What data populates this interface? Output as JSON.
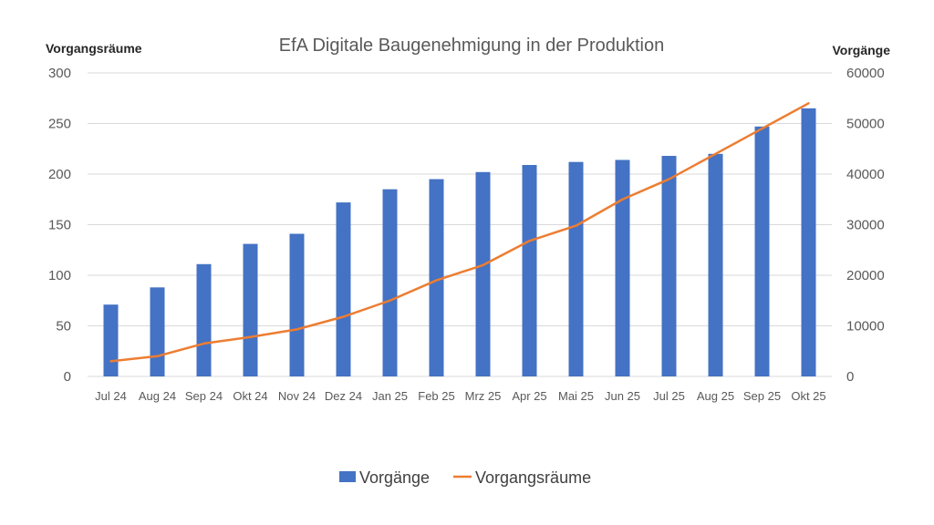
{
  "chart_data": {
    "type": "bar",
    "title": "EfA Digitale Baugenehmigung in der Produktion",
    "categories": [
      "Jul 24",
      "Aug 24",
      "Sep 24",
      "Okt 24",
      "Nov 24",
      "Dez 24",
      "Jan 25",
      "Feb 25",
      "Mrz 25",
      "Apr 25",
      "Mai 25",
      "Jun 25",
      "Jul 25",
      "Aug 25",
      "Sep 25",
      "Okt 25"
    ],
    "y_left": {
      "label": "Vorgangsräume",
      "ylim": [
        0,
        300
      ],
      "ticks": [
        "0",
        "50",
        "100",
        "150",
        "200",
        "250",
        "300"
      ]
    },
    "y_right": {
      "label": "Vorgänge",
      "ylim": [
        0,
        60000
      ],
      "ticks": [
        "0",
        "10000",
        "20000",
        "30000",
        "40000",
        "50000",
        "60000"
      ]
    },
    "series": [
      {
        "name": "Vorgänge",
        "type": "bar",
        "axis": "left",
        "color": "#4472c4",
        "values": [
          71,
          88,
          111,
          131,
          141,
          172,
          185,
          195,
          202,
          209,
          212,
          214,
          218,
          220,
          247,
          265
        ]
      },
      {
        "name": "Vorgangsräume",
        "type": "line",
        "axis": "right",
        "color": "#ed7d31",
        "values": [
          3000,
          4000,
          6500,
          7800,
          9300,
          11800,
          15000,
          19000,
          22000,
          26800,
          29800,
          35000,
          39000,
          44000,
          49000,
          54000
        ]
      }
    ],
    "grid": true,
    "legend_position": "bottom"
  }
}
